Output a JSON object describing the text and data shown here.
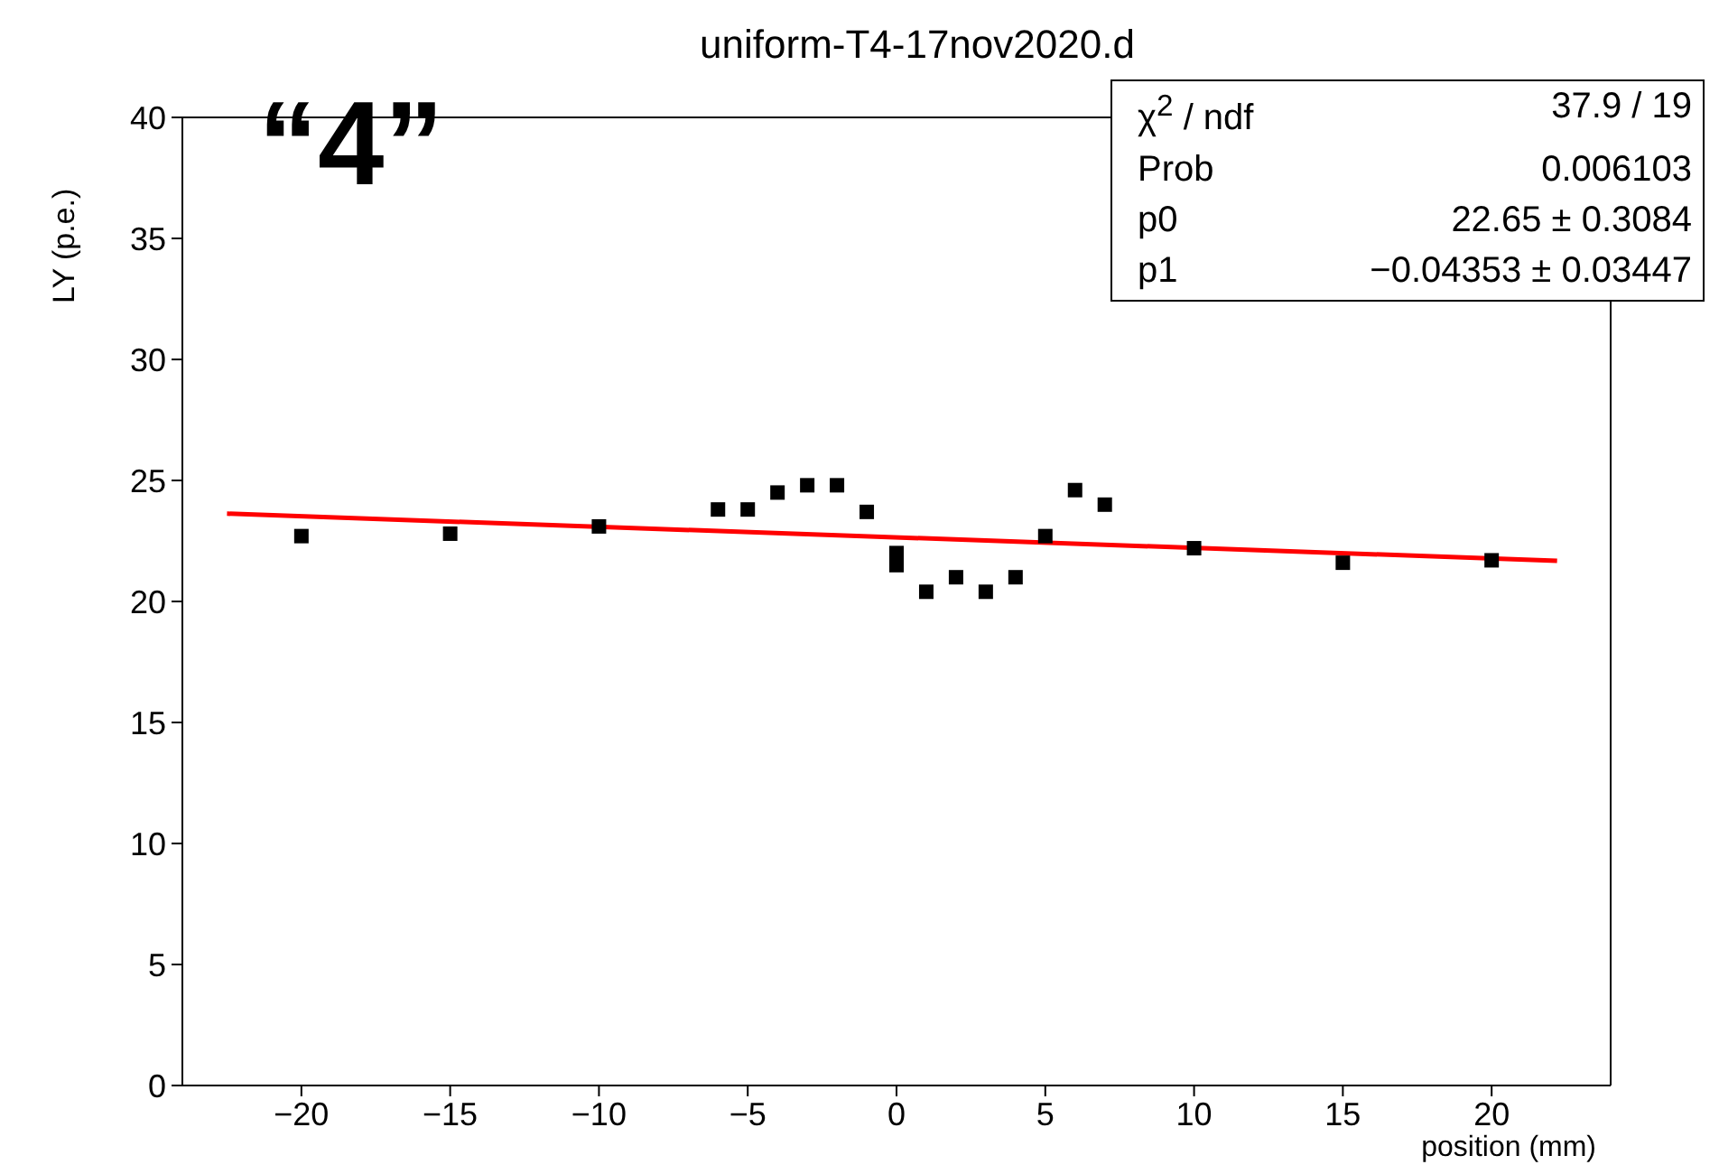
{
  "chart_data": {
    "type": "scatter",
    "title": "uniform-T4-17nov2020.d",
    "xlabel": "position (mm)",
    "ylabel": "LY (p.e.)",
    "xlim": [
      -24,
      24
    ],
    "xticks": [
      -20,
      -15,
      -10,
      -5,
      0,
      5,
      10,
      15,
      20
    ],
    "ylim": [
      0,
      40
    ],
    "yticks": [
      0,
      5,
      10,
      15,
      20,
      25,
      30,
      35,
      40
    ],
    "grid": false,
    "marker": "square",
    "x": [
      -20,
      -15,
      -10,
      -6,
      -5,
      -4,
      -3,
      -2,
      -1,
      0,
      0,
      1,
      2,
      3,
      4,
      5,
      6,
      7,
      10,
      15,
      20
    ],
    "series": [
      {
        "color": "#000000",
        "values": [
          22.7,
          22.8,
          23.1,
          23.8,
          23.8,
          24.5,
          24.8,
          24.8,
          23.7,
          22.0,
          21.5,
          20.4,
          21.0,
          20.4,
          21.0,
          22.7,
          24.6,
          24.0,
          22.2,
          21.6,
          21.7
        ]
      },
      {
        "type": "line",
        "color": "#ff0000",
        "x": [
          -22.5,
          22.2
        ],
        "values": [
          23.63,
          21.68
        ],
        "line_style": "solid",
        "marker": "none"
      }
    ],
    "annotations": [
      "“4”",
      "χ$^{2}$ / ndf",
      "37.9 / 19",
      "Prob",
      "0.006103",
      "p0",
      "22.65 ± 0.3084",
      "p1",
      "−0.04353 ± 0.03447"
    ]
  }
}
